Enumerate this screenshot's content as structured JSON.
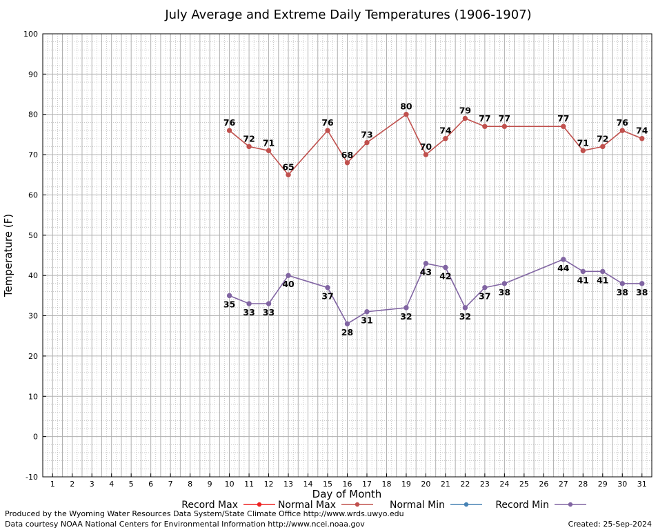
{
  "chart_data": {
    "type": "line",
    "title": "July Average and Extreme Daily Temperatures (1906-1907)",
    "xlabel": "Day of Month",
    "ylabel": "Temperature (F)",
    "xlim": [
      0.5,
      31.5
    ],
    "ylim": [
      -10,
      100
    ],
    "x_ticks": [
      1,
      2,
      3,
      4,
      5,
      6,
      7,
      8,
      9,
      10,
      11,
      12,
      13,
      14,
      15,
      16,
      17,
      18,
      19,
      20,
      21,
      22,
      23,
      24,
      25,
      26,
      27,
      28,
      29,
      30,
      31
    ],
    "y_ticks": [
      -10,
      0,
      10,
      20,
      30,
      40,
      50,
      60,
      70,
      80,
      90,
      100
    ],
    "grid": true,
    "legend_position": "bottom",
    "series": [
      {
        "name": "Record Max",
        "color": "#ee2222",
        "x": [],
        "values": []
      },
      {
        "name": "Normal Max",
        "color": "#c0504d",
        "x": [
          10,
          11,
          12,
          13,
          15,
          16,
          17,
          19,
          20,
          21,
          22,
          23,
          24,
          27,
          28,
          29,
          30,
          31
        ],
        "values": [
          76,
          72,
          71,
          65,
          76,
          68,
          73,
          80,
          70,
          74,
          79,
          77,
          77,
          77,
          71,
          72,
          76,
          74
        ],
        "labels_position": "above"
      },
      {
        "name": "Normal Min",
        "color": "#4682b4",
        "x": [],
        "values": []
      },
      {
        "name": "Record Min",
        "color": "#8064a2",
        "x": [
          10,
          11,
          12,
          13,
          15,
          16,
          17,
          19,
          20,
          21,
          22,
          23,
          24,
          27,
          28,
          29,
          30,
          31
        ],
        "values": [
          35,
          33,
          33,
          40,
          37,
          28,
          31,
          32,
          43,
          42,
          32,
          37,
          38,
          44,
          41,
          41,
          38,
          38
        ],
        "labels_position": "below"
      }
    ]
  },
  "footer": {
    "produced_by": "Produced by the Wyoming Water Resources Data System/State Climate Office http://www.wrds.uwyo.edu",
    "courtesy": "Data courtesy NOAA National Centers for Environmental Information http://www.ncei.noaa.gov",
    "created": "Created:  25-Sep-2024"
  }
}
